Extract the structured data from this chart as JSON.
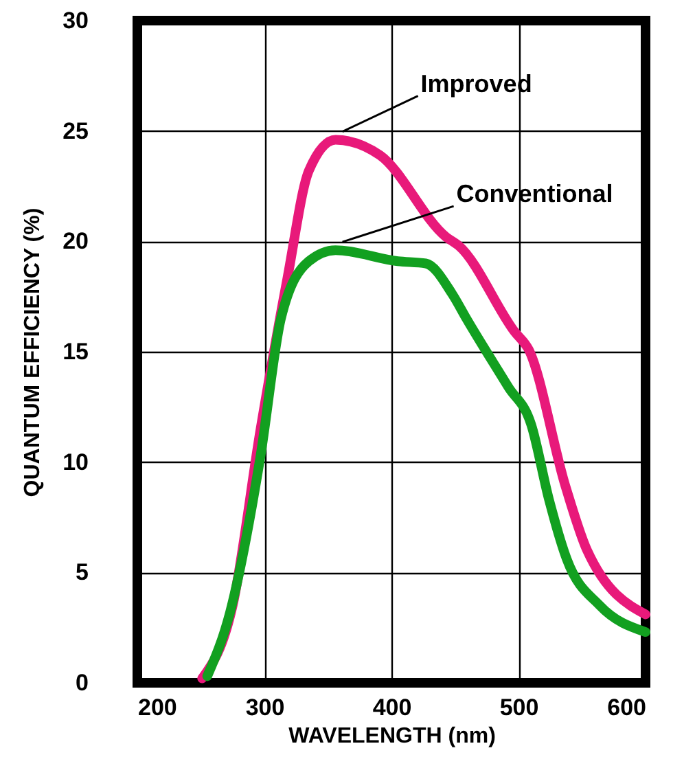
{
  "chart_data": {
    "type": "line",
    "xlabel": "WAVELENGTH (nm)",
    "ylabel": "QUANTUM EFFICIENCY (%)",
    "xlim": [
      200,
      600
    ],
    "xticks": [
      200,
      300,
      400,
      500,
      600
    ],
    "ylim": [
      0,
      30
    ],
    "yticks": [
      0,
      5,
      10,
      15,
      20,
      25,
      30
    ],
    "grid": true,
    "line_style": "solid",
    "series": [
      {
        "name": "Improved",
        "color": "#e8197a",
        "x": [
          251,
          275,
          297,
          318,
          335,
          356,
          391,
          443,
          453,
          497,
          508,
          537,
          554,
          600
        ],
        "values": [
          0.2,
          3.5,
          11.5,
          18.3,
          23.2,
          24.6,
          23.9,
          20.2,
          19.8,
          15.9,
          15.1,
          8.9,
          6.0,
          3.1
        ]
      },
      {
        "name": "Conventional",
        "color": "#12a020",
        "x": [
          255,
          273,
          297,
          313,
          335,
          356,
          405,
          427,
          448,
          459,
          492,
          510,
          524,
          538,
          564,
          600
        ],
        "values": [
          0.3,
          3.2,
          10.3,
          16.5,
          19.1,
          19.6,
          19.1,
          19.0,
          17.6,
          16.5,
          13.4,
          11.7,
          8.3,
          5.6,
          3.5,
          2.3
        ]
      }
    ]
  }
}
